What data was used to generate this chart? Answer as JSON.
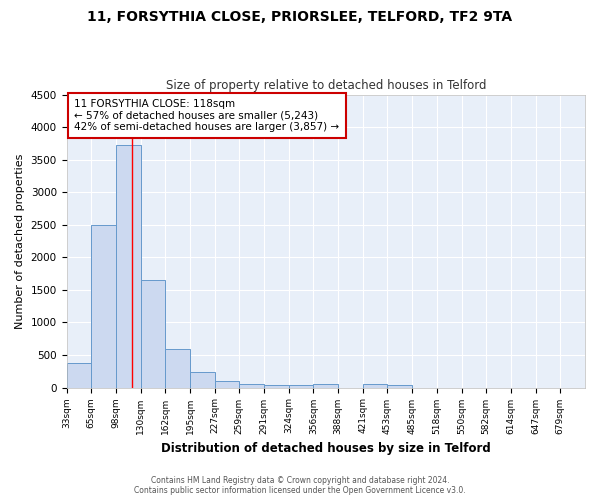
{
  "title1": "11, FORSYTHIA CLOSE, PRIORSLEE, TELFORD, TF2 9TA",
  "title2": "Size of property relative to detached houses in Telford",
  "xlabel": "Distribution of detached houses by size in Telford",
  "ylabel": "Number of detached properties",
  "footer1": "Contains HM Land Registry data © Crown copyright and database right 2024.",
  "footer2": "Contains public sector information licensed under the Open Government Licence v3.0.",
  "annotation_line1": "11 FORSYTHIA CLOSE: 118sqm",
  "annotation_line2": "← 57% of detached houses are smaller (5,243)",
  "annotation_line3": "42% of semi-detached houses are larger (3,857) →",
  "bar_color": "#ccd9f0",
  "bar_edge_color": "#6699cc",
  "categories": [
    "33sqm",
    "65sqm",
    "98sqm",
    "130sqm",
    "162sqm",
    "195sqm",
    "227sqm",
    "259sqm",
    "291sqm",
    "324sqm",
    "356sqm",
    "388sqm",
    "421sqm",
    "453sqm",
    "485sqm",
    "518sqm",
    "550sqm",
    "582sqm",
    "614sqm",
    "647sqm",
    "679sqm"
  ],
  "values": [
    380,
    2500,
    3730,
    1650,
    590,
    240,
    100,
    60,
    40,
    40,
    60,
    0,
    60,
    40,
    0,
    0,
    0,
    0,
    0,
    0,
    0
  ],
  "ylim": [
    0,
    4500
  ],
  "yticks": [
    0,
    500,
    1000,
    1500,
    2000,
    2500,
    3000,
    3500,
    4000,
    4500
  ],
  "red_line_bin": 2.65,
  "background_color": "#e8eff9",
  "plot_bg_color": "#e8eff9",
  "fig_bg_color": "#ffffff",
  "grid_color": "#ffffff",
  "annotation_box_facecolor": "#ffffff",
  "annotation_box_edgecolor": "#cc0000"
}
